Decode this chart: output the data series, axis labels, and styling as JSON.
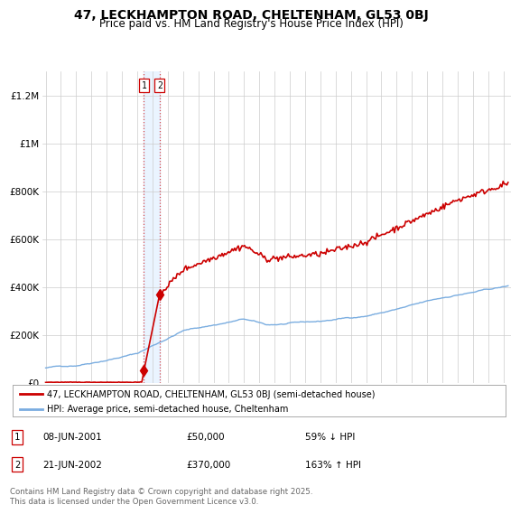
{
  "title": "47, LECKHAMPTON ROAD, CHELTENHAM, GL53 0BJ",
  "subtitle": "Price paid vs. HM Land Registry's House Price Index (HPI)",
  "legend_red": "47, LECKHAMPTON ROAD, CHELTENHAM, GL53 0BJ (semi-detached house)",
  "legend_blue": "HPI: Average price, semi-detached house, Cheltenham",
  "footer": "Contains HM Land Registry data © Crown copyright and database right 2025.\nThis data is licensed under the Open Government Licence v3.0.",
  "transactions": [
    {
      "num": 1,
      "date": "08-JUN-2001",
      "price": 50000,
      "pct": "59%",
      "dir": "↓"
    },
    {
      "num": 2,
      "date": "21-JUN-2002",
      "price": 370000,
      "pct": "163%",
      "dir": "↑"
    }
  ],
  "red_color": "#cc0000",
  "blue_color": "#7aade0",
  "shade_color": "#ddeeff",
  "background": "#ffffff",
  "grid_color": "#cccccc",
  "ylim": [
    0,
    1300000
  ],
  "yticks": [
    0,
    200000,
    400000,
    600000,
    800000,
    1000000,
    1200000
  ],
  "ytick_labels": [
    "£0",
    "£200K",
    "£400K",
    "£600K",
    "£800K",
    "£1M",
    "£1.2M"
  ],
  "xlim_start": 1994.8,
  "xlim_end": 2025.5,
  "sale1_x": 2001.44,
  "sale1_y": 50000,
  "sale2_x": 2002.47,
  "sale2_y": 370000
}
